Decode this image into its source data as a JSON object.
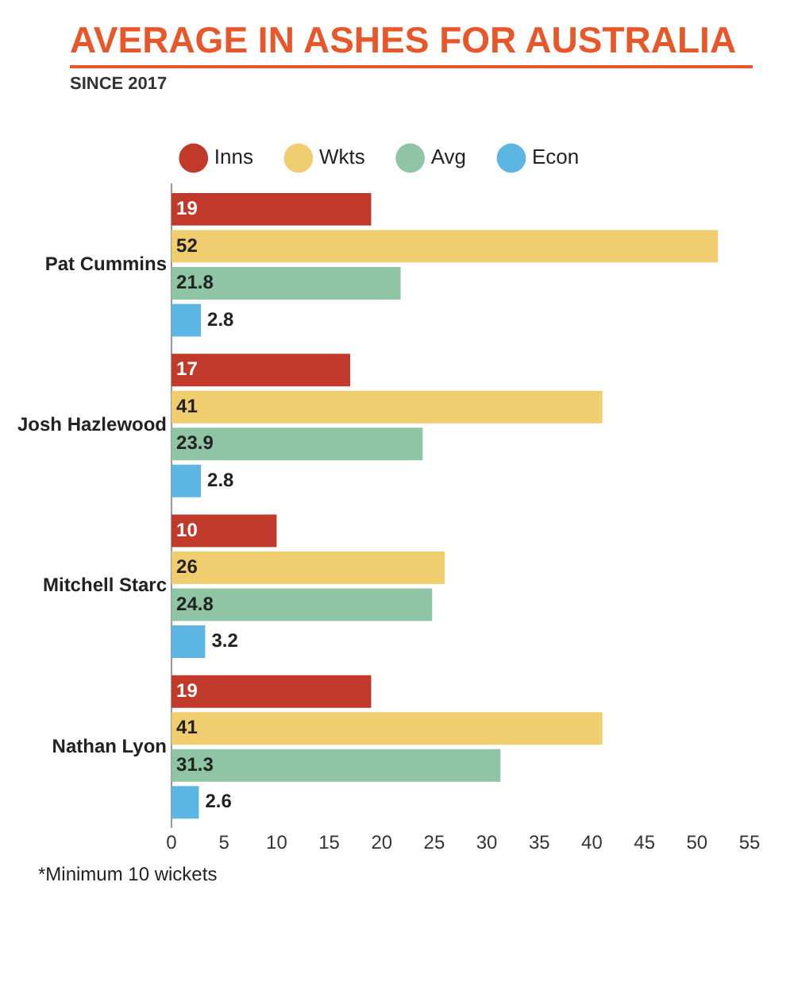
{
  "chart_data": {
    "type": "bar",
    "orientation": "horizontal",
    "title": "AVERAGE IN ASHES FOR AUSTRALIA",
    "subtitle": "SINCE 2017",
    "categories": [
      "Pat Cummins",
      "Josh Hazlewood",
      "Mitchell Starc",
      "Nathan Lyon"
    ],
    "series": [
      {
        "name": "Inns",
        "color": "#c0392b",
        "values": [
          19,
          17,
          10,
          19
        ]
      },
      {
        "name": "Wkts",
        "color": "#f0cd6e",
        "values": [
          52,
          41,
          26,
          41
        ]
      },
      {
        "name": "Avg",
        "color": "#8fc4a5",
        "values": [
          21.8,
          23.9,
          24.8,
          31.3
        ]
      },
      {
        "name": "Econ",
        "color": "#5db5e4",
        "values": [
          2.8,
          2.8,
          3.2,
          2.6
        ]
      }
    ],
    "xlim": [
      0,
      55
    ],
    "xticks": [
      0,
      5,
      10,
      15,
      20,
      25,
      30,
      35,
      40,
      45,
      50,
      55
    ],
    "data_labels": true,
    "legend": "top",
    "grid": false,
    "annotations": [
      "*Minimum 10 wickets"
    ]
  }
}
